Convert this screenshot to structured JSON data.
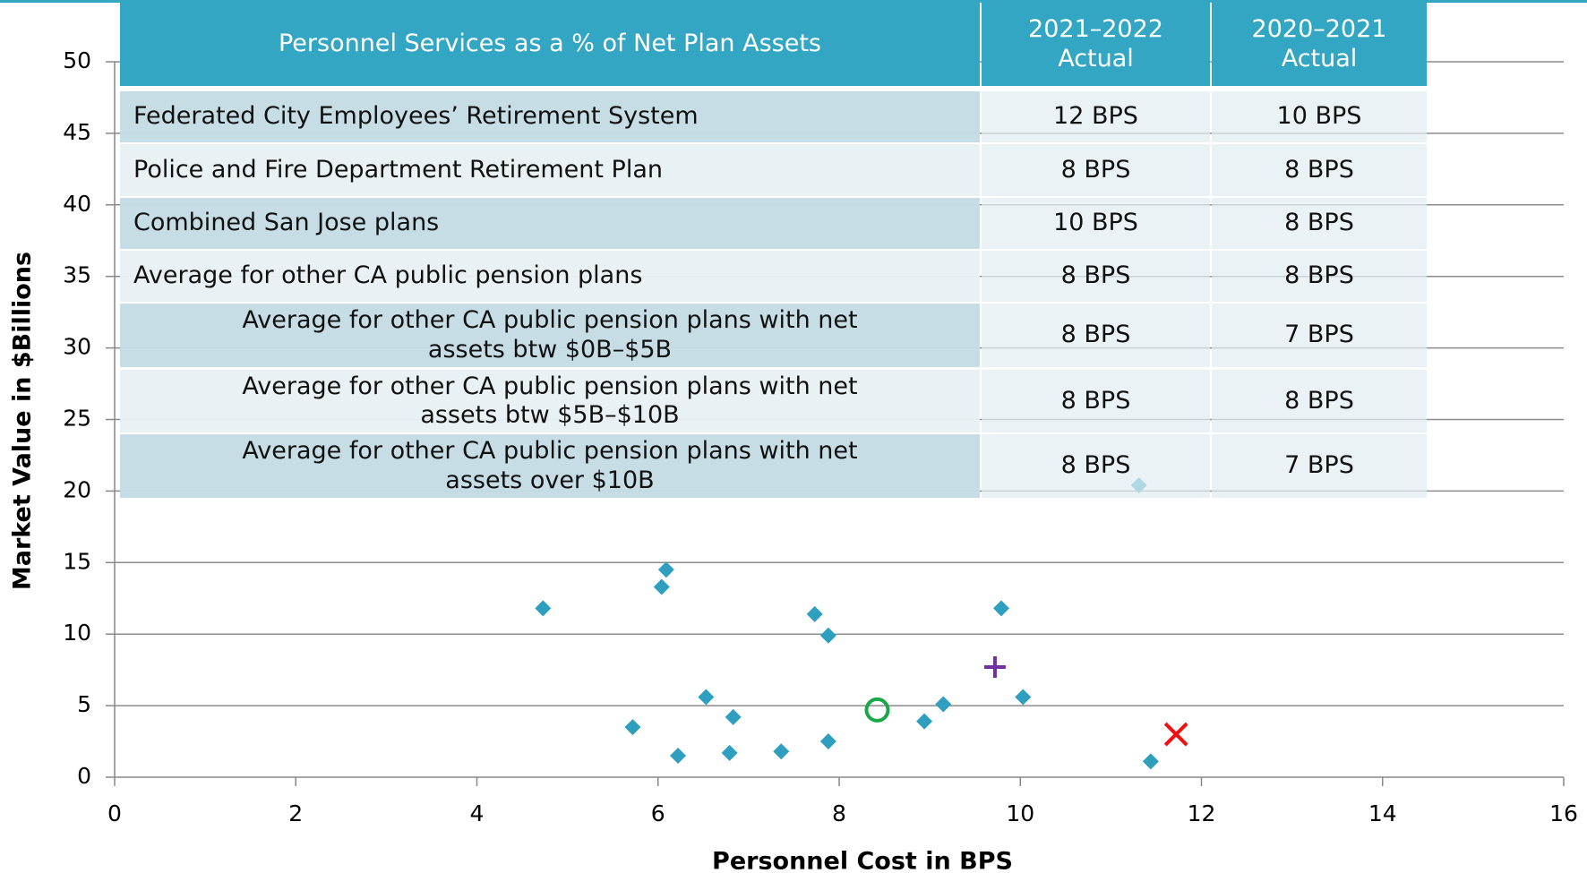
{
  "chart_data": {
    "type": "scatter",
    "xlabel": "Personnel Cost in BPS",
    "ylabel": "Market Value in $Billions",
    "xlim": [
      0,
      16
    ],
    "xticks": [
      0,
      2,
      4,
      6,
      8,
      10,
      12,
      14,
      16
    ],
    "ylim": [
      0,
      50
    ],
    "yticks": [
      0,
      5,
      10,
      15,
      20,
      25,
      30,
      35,
      40,
      45,
      50
    ],
    "grid": true,
    "series": [
      {
        "color": "#2e9fbf",
        "marker": "diamond",
        "x": [
          4.73,
          6.09,
          6.04,
          7.73,
          7.88,
          9.79,
          6.53,
          6.83,
          5.72,
          6.22,
          6.79,
          7.36,
          7.88,
          8.94,
          9.15,
          10.03,
          11.44,
          11.31
        ],
        "values": [
          11.8,
          14.5,
          13.3,
          11.4,
          9.9,
          11.8,
          5.6,
          4.2,
          3.5,
          1.5,
          1.7,
          1.8,
          2.5,
          3.9,
          5.1,
          5.6,
          1.1,
          20.4
        ]
      },
      {
        "color": "#1aa64a",
        "marker": "circle",
        "x": [
          8.42
        ],
        "values": [
          4.7
        ]
      },
      {
        "color": "#7030a0",
        "marker": "plus",
        "x": [
          9.72
        ],
        "values": [
          7.7
        ]
      },
      {
        "color": "#ee1111",
        "marker": "cross",
        "x": [
          11.72
        ],
        "values": [
          3.0
        ]
      }
    ]
  },
  "table": {
    "header": [
      "Personnel Services as a % of Net Plan Assets",
      "2021–2022 Actual",
      "2020–2021 Actual"
    ],
    "rows": [
      [
        "Federated City Employees’ Retirement System",
        "12 BPS",
        "10 BPS"
      ],
      [
        "Police and Fire Department Retirement Plan",
        "8 BPS",
        "8 BPS"
      ],
      [
        "Combined San Jose plans",
        "10 BPS",
        "8 BPS"
      ],
      [
        "Average for other CA public pension plans",
        "8 BPS",
        "8 BPS"
      ],
      [
        "Average for other CA public pension plans with net assets btw $0B–$5B",
        "8 BPS",
        "7 BPS"
      ],
      [
        "Average for other CA public pension plans with net assets btw $5B–$10B",
        "8 BPS",
        "8 BPS"
      ],
      [
        "Average for other CA public pension plans with net assets over $10B",
        "8 BPS",
        "7 BPS"
      ]
    ]
  }
}
